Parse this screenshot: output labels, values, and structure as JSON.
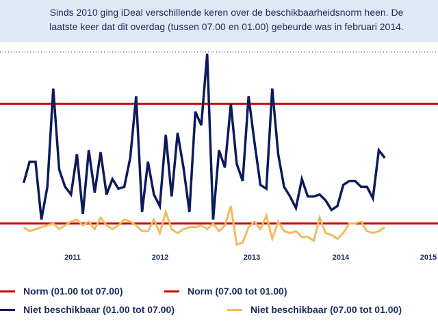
{
  "intro": {
    "line1": "Sinds 2010 ging iDeal verschillende keren over de beschikbaarheidsnorm heen. De",
    "line2": "laatste keer dat dit overdag (tussen 07.00 en 01.00) gebeurde was in februari 2014."
  },
  "colors": {
    "norm": "#cc0000",
    "night": "#0d1a5c",
    "day": "#f0bb5c",
    "background": "#dfe9f5",
    "dotted": "#333333"
  },
  "legend": [
    {
      "label": "Norm (01.00 tot 07.00)",
      "color": "#cc0000"
    },
    {
      "label": "Norm (07.00 tot 01.00)",
      "color": "#cc0000"
    },
    {
      "label": "Niet beschikbaar (01.00 tot 07.00)",
      "color": "#0d1a5c"
    },
    {
      "label": "Niet beschikbaar (07.00 tot 01.00)",
      "color": "#f0bb5c"
    }
  ],
  "chart_data": {
    "type": "line",
    "x_ticks": [
      "2011",
      "2012",
      "2013",
      "2014",
      "2015"
    ],
    "xlim": [
      -4,
      70
    ],
    "ylim": [
      0,
      100
    ],
    "norms": [
      {
        "name": "Norm (01.00 tot 07.00)",
        "value": 73
      },
      {
        "name": "Norm (07.00 tot 01.00)",
        "value": 11
      }
    ],
    "series": [
      {
        "name": "Niet beschikbaar (01.00 tot 07.00)",
        "color": "#0d1a5c",
        "values": [
          32,
          43,
          43,
          13,
          30,
          81,
          39,
          30,
          26,
          47,
          16,
          49,
          27,
          48,
          26,
          34,
          29,
          30,
          45,
          77,
          17,
          43,
          26,
          20,
          57,
          25,
          58,
          40,
          17,
          69,
          62,
          99,
          13,
          49,
          40,
          73,
          42,
          33,
          77,
          53,
          31,
          29,
          81,
          47,
          30,
          25,
          19,
          34,
          25,
          25,
          26,
          23,
          18,
          20,
          31,
          33,
          33,
          30,
          30,
          24,
          49,
          45
        ]
      },
      {
        "name": "Niet beschikbaar (07.00 tot 01.00)",
        "color": "#f0bb5c",
        "values": [
          9,
          7,
          8,
          9,
          10,
          11,
          8,
          10,
          12,
          13,
          10,
          12,
          8,
          14,
          10,
          8,
          10,
          13,
          12,
          10,
          7,
          7,
          13,
          6,
          17,
          8,
          6,
          8,
          9,
          9,
          10,
          8,
          11,
          7,
          10,
          20,
          0,
          1,
          9,
          12,
          8,
          15,
          3,
          12,
          7,
          6,
          7,
          4,
          4,
          2,
          14,
          6,
          5,
          3,
          6,
          11,
          11,
          12,
          7,
          6,
          7,
          9
        ]
      }
    ],
    "grid": false
  }
}
